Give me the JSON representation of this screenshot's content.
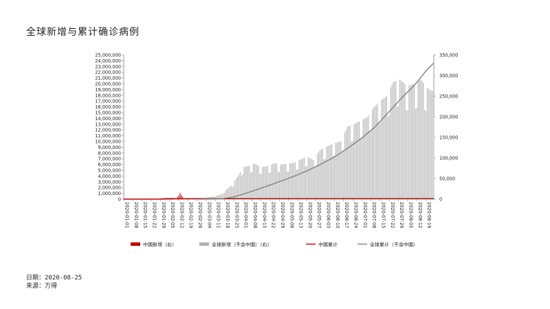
{
  "title": "全球新增与累计确诊病例",
  "footer": {
    "date": "日期：2020-08-25",
    "source": "来源：万得"
  },
  "colors": {
    "china_bar": "#c00000",
    "global_bar": "#b3b3b3",
    "china_cum": "#c00000",
    "global_cum": "#808080",
    "axis": "#808080"
  },
  "chart_data": {
    "type": "bar",
    "title": "全球新增与累计确诊病例",
    "xlabel": "",
    "ylabel": "",
    "x_start": "2020-01-01",
    "x_end": "2020-08-25",
    "tick_labels": [
      "2020-01-01",
      "2020-01-08",
      "2020-01-15",
      "2020-01-22",
      "2020-01-29",
      "2020-02-05",
      "2020-02-12",
      "2020-02-19",
      "2020-02-26",
      "2020-03-04",
      "2020-03-11",
      "2020-03-18",
      "2020-03-25",
      "2020-04-01",
      "2020-04-08",
      "2020-04-15",
      "2020-04-22",
      "2020-04-29",
      "2020-05-06",
      "2020-05-13",
      "2020-05-20",
      "2020-05-27",
      "2020-06-03",
      "2020-06-10",
      "2020-06-17",
      "2020-06-24",
      "2020-07-01",
      "2020-07-08",
      "2020-07-15",
      "2020-07-22",
      "2020-07-29",
      "2020-08-05",
      "2020-08-12",
      "2020-08-19"
    ],
    "left_axis": {
      "min": 0,
      "max": 25000000,
      "step": 1000000,
      "labels": [
        "0",
        "1,000,000",
        "2,000,000",
        "3,000,000",
        "4,000,000",
        "5,000,000",
        "6,000,000",
        "7,000,000",
        "8,000,000",
        "9,000,000",
        "10,000,000",
        "11,000,000",
        "12,000,000",
        "13,000,000",
        "14,000,000",
        "15,000,000",
        "16,000,000",
        "17,000,000",
        "18,000,000",
        "19,000,000",
        "20,000,000",
        "21,000,000",
        "22,000,000",
        "23,000,000",
        "24,000,000",
        "25,000,000"
      ]
    },
    "right_axis": {
      "min": 0,
      "max": 350000,
      "step": 50000,
      "labels": [
        "0",
        "50,000",
        "100,000",
        "150,000",
        "200,000",
        "250,000",
        "300,000",
        "350,000"
      ]
    },
    "series": [
      {
        "name": "中国新增（右）",
        "kind": "bar",
        "axis": "right",
        "color": "#c00000",
        "points": [
          [
            "2020-01-20",
            77
          ],
          [
            "2020-01-23",
            259
          ],
          [
            "2020-01-26",
            769
          ],
          [
            "2020-01-29",
            1459
          ],
          [
            "2020-02-01",
            2590
          ],
          [
            "2020-02-04",
            3887
          ],
          [
            "2020-02-07",
            3399
          ],
          [
            "2020-02-10",
            2478
          ],
          [
            "2020-02-13",
            15152
          ],
          [
            "2020-02-16",
            2009
          ],
          [
            "2020-02-19",
            394
          ],
          [
            "2020-02-22",
            648
          ],
          [
            "2020-02-25",
            406
          ],
          [
            "2020-02-28",
            327
          ],
          [
            "2020-03-02",
            206
          ],
          [
            "2020-03-05",
            143
          ]
        ]
      },
      {
        "name": "全球新增（不含中国）（右）",
        "kind": "bar",
        "axis": "right",
        "color": "#b3b3b3",
        "points": [
          [
            "2020-03-01",
            3000
          ],
          [
            "2020-03-08",
            6000
          ],
          [
            "2020-03-15",
            11000
          ],
          [
            "2020-03-22",
            30000
          ],
          [
            "2020-03-25",
            40000
          ],
          [
            "2020-03-29",
            59000
          ],
          [
            "2020-04-01",
            78000
          ],
          [
            "2020-04-05",
            80000
          ],
          [
            "2020-04-10",
            86000
          ],
          [
            "2020-04-15",
            78000
          ],
          [
            "2020-04-20",
            80000
          ],
          [
            "2020-04-25",
            87000
          ],
          [
            "2020-04-30",
            84000
          ],
          [
            "2020-05-05",
            86000
          ],
          [
            "2020-05-10",
            88000
          ],
          [
            "2020-05-15",
            96000
          ],
          [
            "2020-05-20",
            103000
          ],
          [
            "2020-05-25",
            95000
          ],
          [
            "2020-05-30",
            119000
          ],
          [
            "2020-06-05",
            129000
          ],
          [
            "2020-06-10",
            136000
          ],
          [
            "2020-06-15",
            140000
          ],
          [
            "2020-06-20",
            176000
          ],
          [
            "2020-06-25",
            182000
          ],
          [
            "2020-06-30",
            190000
          ],
          [
            "2020-07-05",
            199000
          ],
          [
            "2020-07-10",
            222000
          ],
          [
            "2020-07-15",
            238000
          ],
          [
            "2020-07-20",
            250000
          ],
          [
            "2020-07-25",
            285000
          ],
          [
            "2020-07-30",
            290000
          ],
          [
            "2020-08-05",
            275000
          ],
          [
            "2020-08-10",
            280000
          ],
          [
            "2020-08-15",
            290000
          ],
          [
            "2020-08-20",
            270000
          ],
          [
            "2020-08-25",
            260000
          ]
        ]
      },
      {
        "name": "中国累计",
        "kind": "line",
        "axis": "left",
        "color": "#c00000",
        "points": [
          [
            "2020-01-01",
            0
          ],
          [
            "2020-01-22",
            571
          ],
          [
            "2020-02-01",
            14380
          ],
          [
            "2020-02-12",
            60000
          ],
          [
            "2020-02-20",
            75000
          ],
          [
            "2020-03-05",
            80500
          ],
          [
            "2020-04-01",
            82300
          ],
          [
            "2020-05-01",
            82900
          ],
          [
            "2020-06-01",
            83000
          ],
          [
            "2020-07-01",
            83500
          ],
          [
            "2020-08-01",
            84300
          ],
          [
            "2020-08-25",
            85000
          ]
        ]
      },
      {
        "name": "全球累计（不含中国）",
        "kind": "line",
        "axis": "left",
        "color": "#808080",
        "points": [
          [
            "2020-03-01",
            8000
          ],
          [
            "2020-03-10",
            30000
          ],
          [
            "2020-03-18",
            120000
          ],
          [
            "2020-03-25",
            380000
          ],
          [
            "2020-04-01",
            850000
          ],
          [
            "2020-04-10",
            1520000
          ],
          [
            "2020-04-20",
            2300000
          ],
          [
            "2020-05-01",
            3200000
          ],
          [
            "2020-05-10",
            3950000
          ],
          [
            "2020-05-20",
            4900000
          ],
          [
            "2020-06-01",
            6200000
          ],
          [
            "2020-06-10",
            7300000
          ],
          [
            "2020-06-20",
            8800000
          ],
          [
            "2020-07-01",
            10600000
          ],
          [
            "2020-07-10",
            12300000
          ],
          [
            "2020-07-20",
            14700000
          ],
          [
            "2020-08-01",
            17700000
          ],
          [
            "2020-08-10",
            19700000
          ],
          [
            "2020-08-20",
            22500000
          ],
          [
            "2020-08-25",
            23600000
          ]
        ]
      }
    ],
    "legend": "bottom",
    "grid": false
  }
}
